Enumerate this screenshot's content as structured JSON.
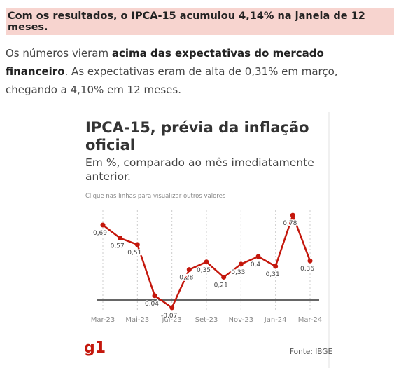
{
  "article": {
    "headline": "Com os resultados, o IPCA-15 acumulou 4,14% na janela de 12 meses.",
    "paragraph": {
      "before": "Os números vieram ",
      "bold": "acima das expectativas do mercado financeiro",
      "after": ". As expectativas eram de alta de 0,31% em março, chegando a 4,10% em 12 meses."
    }
  },
  "chart_data": {
    "type": "line",
    "title": "IPCA-15, prévia da inflação oficial",
    "subtitle": "Em %, comparado ao mês imediatamente anterior.",
    "note": "Clique nas linhas para visualizar outros valores",
    "source": "Fonte: IBGE",
    "logo": "g1",
    "categories": [
      "Mar-23",
      null,
      "Mai-23",
      null,
      "Jul-23",
      null,
      "Set-23",
      null,
      "Nov-23",
      null,
      "Jan-24",
      null,
      "Mar-24"
    ],
    "values": [
      0.69,
      0.57,
      0.51,
      0.04,
      -0.07,
      0.28,
      0.35,
      0.21,
      0.33,
      0.4,
      0.31,
      0.78,
      0.36
    ],
    "value_labels": [
      "0,69",
      "0,57",
      "0,51",
      "0,04",
      "-0,07",
      "0,28",
      "0,35",
      "0,21",
      "0,33",
      "0,4",
      "0,31",
      "0,78",
      "0,36"
    ],
    "color": "#c4170c",
    "ylim": [
      -0.1,
      0.85
    ]
  }
}
